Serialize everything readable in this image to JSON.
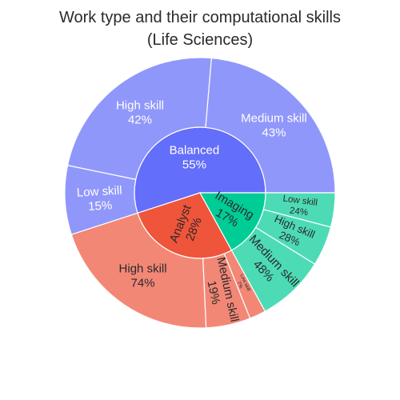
{
  "chart_data": {
    "type": "sunburst",
    "title_lines": [
      "Work type and their computational skills",
      "(Life Sciences)"
    ],
    "rings": [
      {
        "name": "Balanced",
        "percent_label": "55%",
        "value": 55,
        "color": "#636efa",
        "child_color": "#9097fb",
        "children": [
          {
            "name": "Medium skill",
            "percent_label": "43%",
            "value": 43
          },
          {
            "name": "High skill",
            "percent_label": "42%",
            "value": 42
          },
          {
            "name": "Low skill",
            "percent_label": "15%",
            "value": 15
          }
        ]
      },
      {
        "name": "Analyst",
        "percent_label": "28%",
        "value": 28,
        "color": "#ef553b",
        "child_color": "#f38776",
        "children": [
          {
            "name": "High skill",
            "percent_label": "74%",
            "value": 74
          },
          {
            "name": "Medium skill",
            "percent_label": "19%",
            "value": 19
          },
          {
            "name": "Low skill",
            "percent_label": "7%",
            "value": 7
          }
        ]
      },
      {
        "name": "Imaging",
        "percent_label": "17%",
        "value": 17,
        "color": "#00cc96",
        "child_color": "#4ddbb6",
        "children": [
          {
            "name": "Medium skill",
            "percent_label": "48%",
            "value": 48
          },
          {
            "name": "High skill",
            "percent_label": "28%",
            "value": 28
          },
          {
            "name": "Low skill",
            "percent_label": "24%",
            "value": 24
          }
        ]
      }
    ]
  }
}
